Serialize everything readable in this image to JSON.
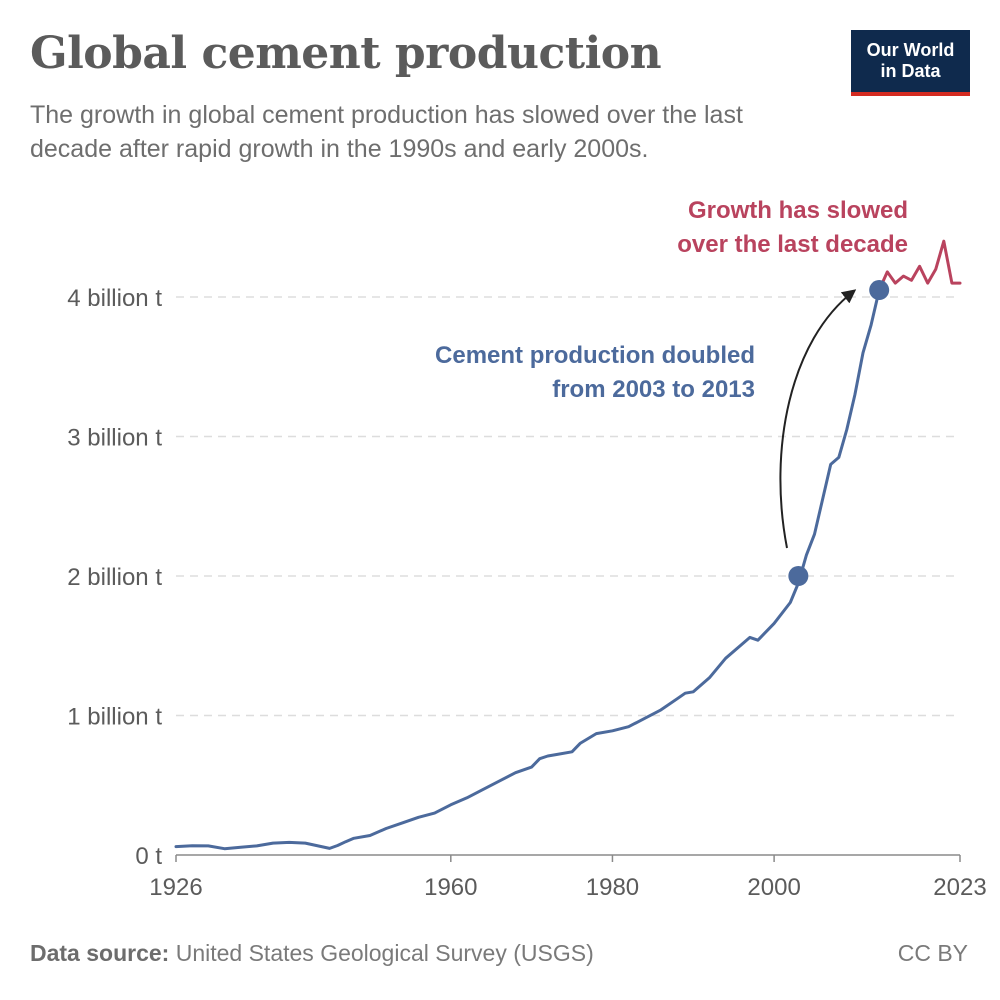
{
  "header": {
    "title": "Global cement production",
    "subtitle": "The growth in global cement production has slowed over the last decade after rapid growth in the 1990s and early 2000s."
  },
  "logo": {
    "line1": "Our World",
    "line2": "in Data"
  },
  "footer": {
    "source_label": "Data source:",
    "source_text": "United States Geological Survey (USGS)",
    "license": "CC BY"
  },
  "colors": {
    "main_series": "#4c6a9c",
    "highlight_series": "#b9435e",
    "grid": "#dddddd",
    "logo_bg": "#0f2a4d",
    "logo_accent": "#d42b21"
  },
  "chart_data": {
    "type": "line",
    "title": "Global cement production",
    "xlabel": "",
    "ylabel": "",
    "xlim": [
      1926,
      2023
    ],
    "ylim": [
      0,
      4.2
    ],
    "y_unit": "billion t",
    "y_ticks": [
      {
        "value": 0,
        "label": "0 t"
      },
      {
        "value": 1,
        "label": "1 billion t"
      },
      {
        "value": 2,
        "label": "2 billion t"
      },
      {
        "value": 3,
        "label": "3 billion t"
      },
      {
        "value": 4,
        "label": "4 billion t"
      }
    ],
    "x_ticks": [
      1926,
      1960,
      1980,
      2000,
      2023
    ],
    "grid": "horizontal dashed",
    "series": [
      {
        "x": [
          1926,
          1928,
          1930,
          1932,
          1934,
          1936,
          1938,
          1940,
          1942,
          1944,
          1945,
          1946,
          1947,
          1948,
          1950,
          1952,
          1954,
          1956,
          1958,
          1960,
          1962,
          1964,
          1966,
          1968,
          1970,
          1971,
          1972,
          1973,
          1975,
          1976,
          1978,
          1980,
          1982,
          1984,
          1986,
          1988,
          1989,
          1990,
          1992,
          1994,
          1996,
          1997,
          1998,
          2000,
          2002,
          2003,
          2004,
          2005,
          2006,
          2007,
          2008,
          2009,
          2010,
          2011,
          2012,
          2013
        ],
        "values": [
          0.06,
          0.066,
          0.065,
          0.045,
          0.055,
          0.065,
          0.085,
          0.09,
          0.085,
          0.06,
          0.047,
          0.068,
          0.095,
          0.12,
          0.14,
          0.19,
          0.23,
          0.27,
          0.3,
          0.36,
          0.41,
          0.47,
          0.53,
          0.59,
          0.63,
          0.69,
          0.71,
          0.72,
          0.74,
          0.8,
          0.87,
          0.89,
          0.92,
          0.98,
          1.04,
          1.12,
          1.16,
          1.17,
          1.27,
          1.41,
          1.51,
          1.56,
          1.54,
          1.66,
          1.81,
          1.95,
          2.15,
          2.3,
          2.55,
          2.8,
          2.85,
          3.05,
          3.3,
          3.6,
          3.8,
          4.05
        ]
      },
      {
        "x": [
          2013,
          2014,
          2015,
          2016,
          2017,
          2018,
          2019,
          2020,
          2021,
          2022,
          2023
        ],
        "values": [
          4.05,
          4.18,
          4.1,
          4.15,
          4.12,
          4.22,
          4.1,
          4.2,
          4.4,
          4.1,
          4.1
        ]
      }
    ],
    "markers": [
      {
        "x": 2003,
        "y": 2.0
      },
      {
        "x": 2013,
        "y": 4.05
      }
    ],
    "annotations": [
      {
        "text_lines": [
          "Cement production doubled",
          "from 2003 to 2013"
        ]
      },
      {
        "text_lines": [
          "Growth has slowed",
          "over the last decade"
        ]
      }
    ]
  }
}
